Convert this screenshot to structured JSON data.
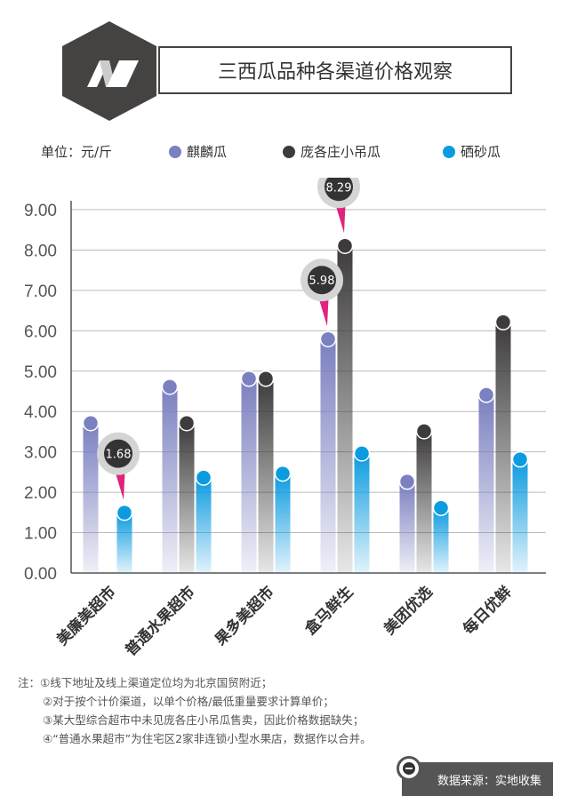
{
  "header": {
    "title": "三西瓜品种各渠道价格观察",
    "logo": "N-hexagon-logo"
  },
  "legend": {
    "unit": "单位：元/斤",
    "items": [
      {
        "label": "麒麟瓜",
        "color": "#7b80c0"
      },
      {
        "label": "庞各庄小吊瓜",
        "color": "#3d3b3b"
      },
      {
        "label": "硒砂瓜",
        "color": "#0c9be0"
      }
    ]
  },
  "chart_data": {
    "type": "bar",
    "categories": [
      "美廉美超市",
      "普通水果超市",
      "果多美超市",
      "盒马鲜生",
      "美团优选",
      "每日优鲜"
    ],
    "series": [
      {
        "name": "麒麟瓜",
        "values": [
          3.9,
          4.8,
          5.0,
          5.98,
          2.45,
          4.6
        ]
      },
      {
        "name": "庞各庄小吊瓜",
        "values": [
          null,
          3.9,
          5.0,
          8.29,
          3.7,
          6.4
        ]
      },
      {
        "name": "硒砂瓜",
        "values": [
          1.68,
          2.55,
          2.65,
          3.15,
          1.8,
          3.0
        ]
      }
    ],
    "ylim": [
      0,
      9
    ],
    "yticks": [
      "0.00",
      "1.00",
      "2.00",
      "3.00",
      "4.00",
      "5.00",
      "6.00",
      "7.00",
      "8.00",
      "9.00"
    ],
    "grid": true,
    "legend_position": "top",
    "annotations": [
      {
        "category": "美廉美超市",
        "series": "硒砂瓜",
        "label": "1.68"
      },
      {
        "category": "盒马鲜生",
        "series": "麒麟瓜",
        "label": "5.98"
      },
      {
        "category": "盒马鲜生",
        "series": "庞各庄小吊瓜",
        "label": "8.29"
      }
    ]
  },
  "notes": [
    "注：①线下地址及线上渠道定位均为北京国贸附近；",
    "②对于按个计价渠道，以单个价格/最低重量要求计算单价；",
    "③某大型综合超市中未见庞各庄小吊瓜售卖，因此价格数据缺失；",
    "④“普通水果超市”为住宅区2家非连锁小型水果店，数据作以合并。"
  ],
  "source": "数据来源：实地收集"
}
